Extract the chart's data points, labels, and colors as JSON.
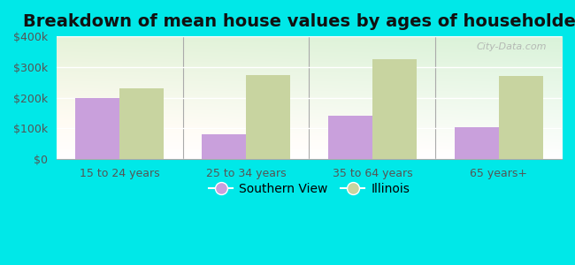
{
  "title": "Breakdown of mean house values by ages of householders",
  "categories": [
    "15 to 24 years",
    "25 to 34 years",
    "35 to 64 years",
    "65 years+"
  ],
  "southern_view_values": [
    200000,
    80000,
    140000,
    105000
  ],
  "illinois_values": [
    230000,
    275000,
    325000,
    272000
  ],
  "southern_view_color": "#c9a0dc",
  "illinois_color": "#c8d4a0",
  "background_color": "#00e8e8",
  "ylim": [
    0,
    400000
  ],
  "yticks": [
    0,
    100000,
    200000,
    300000,
    400000
  ],
  "ytick_labels": [
    "$0",
    "$100k",
    "$200k",
    "$300k",
    "$400k"
  ],
  "bar_width": 0.35,
  "legend_southern_view": "Southern View",
  "legend_illinois": "Illinois",
  "watermark": "City-Data.com",
  "title_fontsize": 14,
  "tick_fontsize": 9,
  "legend_fontsize": 10
}
